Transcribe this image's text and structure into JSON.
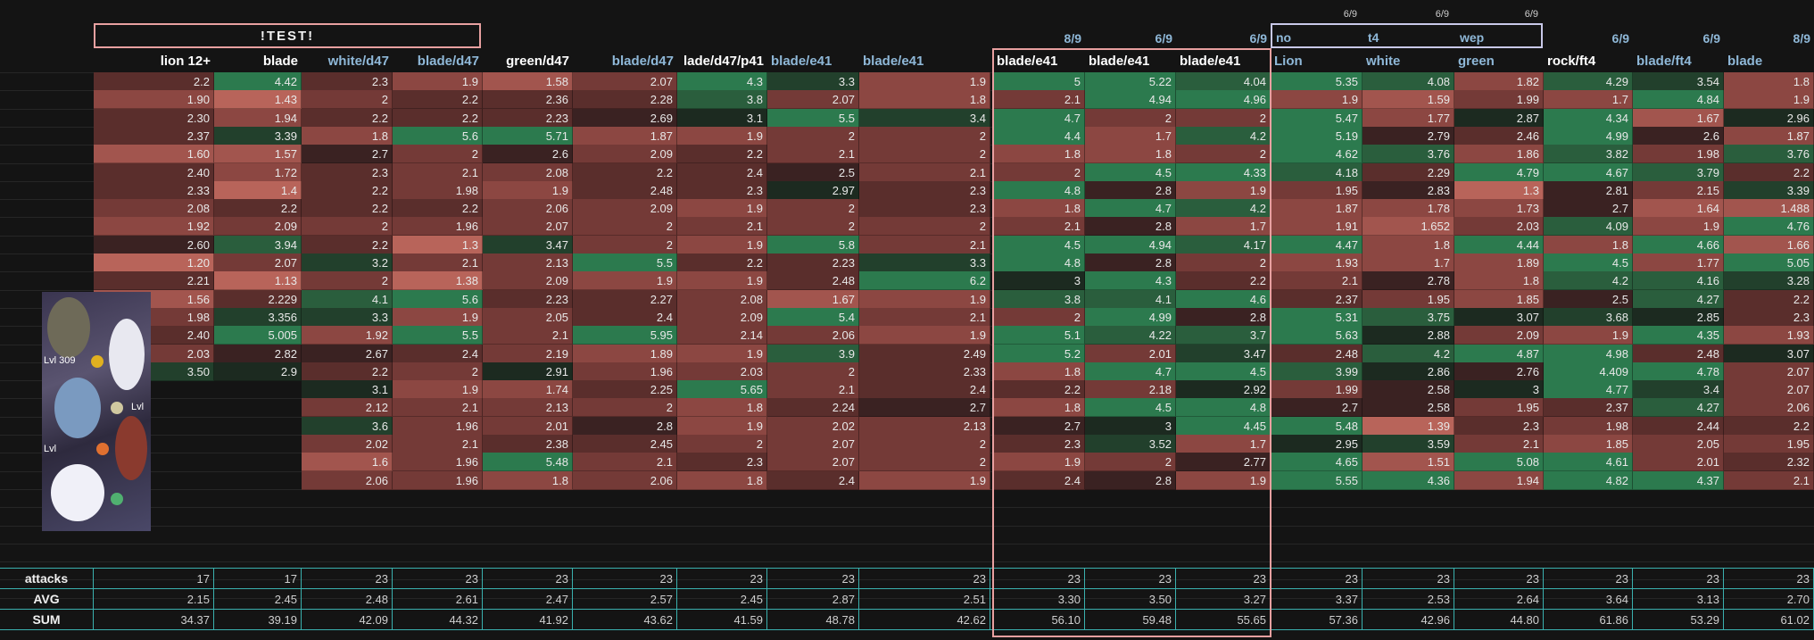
{
  "title_banner": "!TEST!",
  "footer_labels": {
    "attacks": "attacks",
    "avg": "AVG",
    "sum": "SUM"
  },
  "columns": [
    {
      "header": "lion 12+",
      "top": "",
      "header_color": "#ffffff",
      "header_align": "right",
      "values": [
        "2.2",
        "1.90",
        "2.30",
        "2.37",
        "1.60",
        "2.40",
        "2.33",
        "2.08",
        "1.92",
        "2.60",
        "1.20",
        "2.21",
        "1.56",
        "1.98",
        "2.40",
        "2.03",
        "3.50"
      ],
      "attacks": "17",
      "avg": "2.15",
      "sum": "34.37"
    },
    {
      "header": "blade",
      "top": "",
      "header_color": "#ffffff",
      "header_align": "right",
      "values": [
        "4.42",
        "1.43",
        "1.94",
        "3.39",
        "1.57",
        "1.72",
        "1.4",
        "2.2",
        "2.09",
        "3.94",
        "2.07",
        "1.13",
        "2.229",
        "3.356",
        "5.005",
        "2.82",
        "2.9"
      ],
      "attacks": "17",
      "avg": "2.45",
      "sum": "39.19"
    },
    {
      "header": "white/d47",
      "top": "",
      "header_color": "#8fb8d8",
      "header_align": "right",
      "values": [
        "2.3",
        "2",
        "2.2",
        "1.8",
        "2.7",
        "2.3",
        "2.2",
        "2.2",
        "2",
        "2.2",
        "3.2",
        "2",
        "4.1",
        "3.3",
        "1.92",
        "2.67",
        "2.2",
        "3.1",
        "2.12",
        "3.6",
        "2.02",
        "1.6",
        "2.06"
      ],
      "attacks": "23",
      "avg": "2.48",
      "sum": "42.09"
    },
    {
      "header": "blade/d47",
      "top": "",
      "header_color": "#8fb8d8",
      "header_align": "right",
      "values": [
        "1.9",
        "2.2",
        "2.2",
        "5.6",
        "2",
        "2.1",
        "1.98",
        "2.2",
        "1.96",
        "1.3",
        "2.1",
        "1.38",
        "5.6",
        "1.9",
        "5.5",
        "2.4",
        "2",
        "1.9",
        "2.1",
        "1.96",
        "2.1",
        "1.96",
        "1.96"
      ],
      "attacks": "23",
      "avg": "2.61",
      "sum": "44.32"
    },
    {
      "header": "green/d47",
      "top": "",
      "header_color": "#ffffff",
      "header_align": "right",
      "values": [
        "1.58",
        "2.36",
        "2.23",
        "5.71",
        "2.6",
        "2.08",
        "1.9",
        "2.06",
        "2.07",
        "3.47",
        "2.13",
        "2.09",
        "2.23",
        "2.05",
        "2.1",
        "2.19",
        "2.91",
        "1.74",
        "2.13",
        "2.01",
        "2.38",
        "5.48",
        "1.8"
      ],
      "attacks": "23",
      "avg": "2.47",
      "sum": "41.92"
    },
    {
      "header": "blade/d47",
      "top": "",
      "header_color": "#8fb8d8",
      "header_align": "right",
      "values": [
        "2.07",
        "2.28",
        "2.69",
        "1.87",
        "2.09",
        "2.2",
        "2.48",
        "2.09",
        "2",
        "2",
        "5.5",
        "1.9",
        "2.27",
        "2.4",
        "5.95",
        "1.89",
        "1.96",
        "2.25",
        "2",
        "2.8",
        "2.45",
        "2.1",
        "2.06"
      ],
      "attacks": "23",
      "avg": "2.57",
      "sum": "43.62"
    },
    {
      "header": "lade/d47/p41",
      "top": "",
      "header_color": "#ffffff",
      "header_align": "right",
      "values": [
        "4.3",
        "3.8",
        "3.1",
        "1.9",
        "2.2",
        "2.4",
        "2.3",
        "1.9",
        "2.1",
        "1.9",
        "2.2",
        "1.9",
        "2.08",
        "2.09",
        "2.14",
        "1.9",
        "2.03",
        "5.65",
        "1.8",
        "1.9",
        "2",
        "2.3",
        "1.8"
      ],
      "attacks": "23",
      "avg": "2.45",
      "sum": "41.59"
    },
    {
      "header": "blade/e41",
      "top": "",
      "header_color": "#8fb8d8",
      "header_align": "left",
      "values": [
        "3.3",
        "2.07",
        "5.5",
        "2",
        "2.1",
        "2.5",
        "2.97",
        "2",
        "2",
        "5.8",
        "2.23",
        "2.48",
        "1.67",
        "5.4",
        "2.06",
        "3.9",
        "2",
        "2.1",
        "2.24",
        "2.02",
        "2.07",
        "2.07",
        "2.4"
      ],
      "attacks": "23",
      "avg": "2.87",
      "sum": "48.78"
    },
    {
      "header": "blade/e41",
      "top": "",
      "header_color": "#8fb8d8",
      "header_align": "left",
      "values": [
        "1.9",
        "1.8",
        "3.4",
        "2",
        "2",
        "2.1",
        "2.3",
        "2.3",
        "2",
        "2.1",
        "3.3",
        "6.2",
        "1.9",
        "2.1",
        "1.9",
        "2.49",
        "2.33",
        "2.4",
        "2.7",
        "2.13",
        "2",
        "2",
        "1.9"
      ],
      "attacks": "23",
      "avg": "2.51",
      "sum": "42.62"
    },
    {
      "header": "blade/e41",
      "top": "8/9",
      "header_color": "#ffffff",
      "header_align": "left",
      "values": [
        "5",
        "2.1",
        "4.7",
        "4.4",
        "1.8",
        "2",
        "4.8",
        "1.8",
        "2.1",
        "4.5",
        "4.8",
        "3",
        "3.8",
        "2",
        "5.1",
        "5.2",
        "1.8",
        "2.2",
        "1.8",
        "2.7",
        "2.3",
        "1.9",
        "2.4"
      ],
      "attacks": "23",
      "avg": "3.30",
      "sum": "56.10"
    },
    {
      "header": "blade/e41",
      "top": "6/9",
      "header_color": "#ffffff",
      "header_align": "left",
      "values": [
        "5.22",
        "4.94",
        "2",
        "1.7",
        "1.8",
        "4.5",
        "2.8",
        "4.7",
        "2.8",
        "4.94",
        "2.8",
        "4.3",
        "4.1",
        "4.99",
        "4.22",
        "2.01",
        "4.7",
        "2.18",
        "4.5",
        "3",
        "3.52",
        "2",
        "2.8"
      ],
      "attacks": "23",
      "avg": "3.50",
      "sum": "59.48"
    },
    {
      "header": "blade/e41",
      "top": "6/9",
      "header_color": "#ffffff",
      "header_align": "left",
      "values": [
        "4.04",
        "4.96",
        "2",
        "4.2",
        "2",
        "4.33",
        "1.9",
        "4.2",
        "1.7",
        "4.17",
        "2",
        "2.2",
        "4.6",
        "2.8",
        "3.7",
        "3.47",
        "4.5",
        "2.92",
        "4.8",
        "4.45",
        "1.7",
        "2.77",
        "1.9"
      ],
      "attacks": "23",
      "avg": "3.27",
      "sum": "55.65"
    },
    {
      "header": "Lion",
      "top": "",
      "header_color": "#8fb8d8",
      "header_align": "left",
      "top_box": "no",
      "top_small": "6/9",
      "values": [
        "5.35",
        "1.9",
        "5.47",
        "5.19",
        "4.62",
        "4.18",
        "1.95",
        "1.87",
        "1.91",
        "4.47",
        "1.93",
        "2.1",
        "2.37",
        "5.31",
        "5.63",
        "2.48",
        "3.99",
        "1.99",
        "2.7",
        "5.48",
        "2.95",
        "4.65",
        "5.55"
      ],
      "attacks": "23",
      "avg": "3.37",
      "sum": "57.36"
    },
    {
      "header": "white",
      "top": "",
      "header_color": "#8fb8d8",
      "header_align": "left",
      "top_box": "t4",
      "top_small": "6/9",
      "values": [
        "4.08",
        "1.59",
        "1.77",
        "2.79",
        "3.76",
        "2.29",
        "2.83",
        "1.78",
        "1.652",
        "1.8",
        "1.7",
        "2.78",
        "1.95",
        "3.75",
        "2.88",
        "4.2",
        "2.86",
        "2.58",
        "2.58",
        "1.39",
        "3.59",
        "1.51",
        "4.36"
      ],
      "attacks": "23",
      "avg": "2.53",
      "sum": "42.96"
    },
    {
      "header": "green",
      "top": "",
      "header_color": "#8fb8d8",
      "header_align": "left",
      "top_box": "wep",
      "top_small": "6/9",
      "values": [
        "1.82",
        "1.99",
        "2.87",
        "2.46",
        "1.86",
        "4.79",
        "1.3",
        "1.73",
        "2.03",
        "4.44",
        "1.89",
        "1.8",
        "1.85",
        "3.07",
        "2.09",
        "4.87",
        "2.76",
        "3",
        "1.95",
        "2.3",
        "2.1",
        "5.08",
        "1.94"
      ],
      "attacks": "23",
      "avg": "2.64",
      "sum": "44.80"
    },
    {
      "header": "rock/ft4",
      "top": "6/9",
      "header_color": "#ffffff",
      "header_align": "left",
      "values": [
        "4.29",
        "1.7",
        "4.34",
        "4.99",
        "3.82",
        "4.67",
        "2.81",
        "2.7",
        "4.09",
        "1.8",
        "4.5",
        "4.2",
        "2.5",
        "3.68",
        "1.9",
        "4.98",
        "4.409",
        "4.77",
        "2.37",
        "1.98",
        "1.85",
        "4.61",
        "4.82"
      ],
      "attacks": "23",
      "avg": "3.64",
      "sum": "61.86"
    },
    {
      "header": "blade/ft4",
      "top": "6/9",
      "header_color": "#8fb8d8",
      "header_align": "left",
      "values": [
        "3.54",
        "4.84",
        "1.67",
        "2.6",
        "1.98",
        "3.79",
        "2.15",
        "1.64",
        "1.9",
        "4.66",
        "1.77",
        "4.16",
        "4.27",
        "2.85",
        "4.35",
        "2.48",
        "4.78",
        "3.4",
        "4.27",
        "2.44",
        "2.05",
        "2.01",
        "4.37"
      ],
      "attacks": "23",
      "avg": "3.13",
      "sum": "53.29"
    },
    {
      "header": "blade",
      "top": "8/9",
      "header_color": "#8fb8d8",
      "header_align": "left",
      "values": [
        "1.8",
        "1.9",
        "2.96",
        "1.87",
        "3.76",
        "2.2",
        "3.39",
        "1.488",
        "4.76",
        "1.66",
        "5.05",
        "3.28",
        "2.2",
        "2.3",
        "1.93",
        "3.07",
        "2.07",
        "2.07",
        "2.06",
        "2.2",
        "1.95",
        "2.32",
        "2.1"
      ],
      "attacks": "23",
      "avg": "2.70",
      "sum": "61.02"
    }
  ],
  "colors": {
    "bg": "#141414",
    "pink_box": "#e8a0a0",
    "lavender_box": "#c8c8e8",
    "teal_line": "#3ab0ae",
    "header_blue": "#8fb8d8"
  },
  "thumbnail": {
    "labels": [
      "Lvl 309",
      "Lvl",
      "Lvl"
    ],
    "icon": "game-thumbnail-image"
  }
}
